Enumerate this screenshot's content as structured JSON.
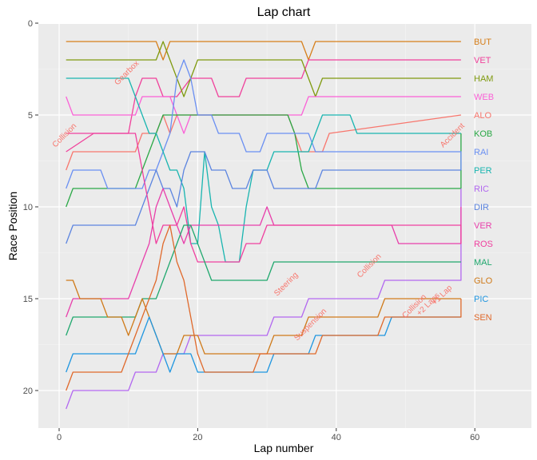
{
  "chart_data": {
    "type": "line",
    "title": "Lap chart",
    "xlabel": "Lap number",
    "ylabel": "Race Position",
    "xlim": [
      -3,
      68
    ],
    "ylim": [
      22,
      0
    ],
    "x_ticks": [
      0,
      20,
      40,
      60
    ],
    "y_ticks": [
      0,
      5,
      10,
      15,
      20
    ],
    "grid": true,
    "series": [
      {
        "name": "BUT",
        "color": "#d67f1b",
        "points": [
          [
            1,
            1
          ],
          [
            14,
            1
          ],
          [
            15,
            2
          ],
          [
            16,
            1
          ],
          [
            35,
            1
          ],
          [
            36,
            2
          ],
          [
            37,
            1
          ],
          [
            58,
            1
          ]
        ]
      },
      {
        "name": "VET",
        "color": "#f0419b",
        "points": [
          [
            1,
            7
          ],
          [
            5,
            6
          ],
          [
            10,
            6
          ],
          [
            11,
            4
          ],
          [
            12,
            3
          ],
          [
            14,
            3
          ],
          [
            15,
            4
          ],
          [
            17,
            4
          ],
          [
            19,
            3
          ],
          [
            22,
            3
          ],
          [
            23,
            4
          ],
          [
            26,
            4
          ],
          [
            27,
            3
          ],
          [
            35,
            3
          ],
          [
            36,
            2
          ],
          [
            58,
            2
          ]
        ]
      },
      {
        "name": "HAM",
        "color": "#7f9a0f",
        "points": [
          [
            1,
            2
          ],
          [
            14,
            2
          ],
          [
            15,
            1
          ],
          [
            16,
            2
          ],
          [
            17,
            3
          ],
          [
            18,
            4
          ],
          [
            19,
            3
          ],
          [
            20,
            2
          ],
          [
            35,
            2
          ],
          [
            36,
            3
          ],
          [
            37,
            4
          ],
          [
            38,
            3
          ],
          [
            58,
            3
          ]
        ]
      },
      {
        "name": "WEB",
        "color": "#fb61d7",
        "points": [
          [
            1,
            4
          ],
          [
            2,
            5
          ],
          [
            11,
            5
          ],
          [
            12,
            4
          ],
          [
            16,
            4
          ],
          [
            17,
            5
          ],
          [
            18,
            6
          ],
          [
            19,
            5
          ],
          [
            35,
            5
          ],
          [
            36,
            4
          ],
          [
            58,
            4
          ]
        ]
      },
      {
        "name": "ALO",
        "color": "#f8766d",
        "points": [
          [
            1,
            8
          ],
          [
            2,
            7
          ],
          [
            11,
            7
          ],
          [
            12,
            6
          ],
          [
            14,
            6
          ],
          [
            15,
            5
          ],
          [
            16,
            6
          ],
          [
            17,
            5
          ],
          [
            33,
            5
          ],
          [
            34,
            6
          ],
          [
            35,
            7
          ],
          [
            38,
            7
          ],
          [
            39,
            6
          ],
          [
            58,
            5
          ]
        ]
      },
      {
        "name": "KOB",
        "color": "#2aa846",
        "points": [
          [
            1,
            10
          ],
          [
            2,
            9
          ],
          [
            11,
            9
          ],
          [
            12,
            8
          ],
          [
            13,
            7
          ],
          [
            14,
            6
          ],
          [
            15,
            5
          ],
          [
            33,
            5
          ],
          [
            34,
            6
          ],
          [
            35,
            8
          ],
          [
            36,
            9
          ],
          [
            58,
            9
          ],
          [
            58,
            6
          ]
        ]
      },
      {
        "name": "RAI",
        "color": "#6a8ff2",
        "points": [
          [
            1,
            9
          ],
          [
            2,
            8
          ],
          [
            6,
            8
          ],
          [
            7,
            9
          ],
          [
            12,
            9
          ],
          [
            13,
            8
          ],
          [
            14,
            8
          ],
          [
            15,
            7
          ],
          [
            16,
            6
          ],
          [
            17,
            3
          ],
          [
            18,
            2
          ],
          [
            19,
            3
          ],
          [
            20,
            5
          ],
          [
            22,
            5
          ],
          [
            23,
            6
          ],
          [
            26,
            6
          ],
          [
            27,
            7
          ],
          [
            29,
            7
          ],
          [
            30,
            6
          ],
          [
            36,
            6
          ],
          [
            37,
            7
          ],
          [
            58,
            7
          ],
          [
            58,
            8
          ]
        ]
      },
      {
        "name": "PER",
        "color": "#19b5b0",
        "points": [
          [
            1,
            3
          ],
          [
            10,
            3
          ],
          [
            11,
            4
          ],
          [
            12,
            5
          ],
          [
            13,
            6
          ],
          [
            14,
            6
          ],
          [
            15,
            7
          ],
          [
            16,
            8
          ],
          [
            17,
            8
          ],
          [
            18,
            9
          ],
          [
            19,
            12
          ],
          [
            20,
            12
          ],
          [
            21,
            7
          ],
          [
            22,
            10
          ],
          [
            23,
            11
          ],
          [
            24,
            13
          ],
          [
            26,
            13
          ],
          [
            27,
            10
          ],
          [
            28,
            8
          ],
          [
            30,
            8
          ],
          [
            31,
            7
          ],
          [
            36,
            7
          ],
          [
            37,
            6
          ],
          [
            38,
            5
          ],
          [
            42,
            5
          ],
          [
            43,
            6
          ],
          [
            58,
            6
          ]
        ]
      },
      {
        "name": "RIC",
        "color": "#b267f0",
        "points": [
          [
            1,
            21
          ],
          [
            2,
            20
          ],
          [
            10,
            20
          ],
          [
            11,
            19
          ],
          [
            14,
            19
          ],
          [
            15,
            18
          ],
          [
            18,
            18
          ],
          [
            19,
            17
          ],
          [
            30,
            17
          ],
          [
            31,
            16
          ],
          [
            35,
            16
          ],
          [
            36,
            15
          ],
          [
            46,
            15
          ],
          [
            47,
            14
          ],
          [
            58,
            14
          ],
          [
            58,
            9
          ]
        ]
      },
      {
        "name": "DIR",
        "color": "#5c85e0",
        "points": [
          [
            1,
            12
          ],
          [
            2,
            11
          ],
          [
            11,
            11
          ],
          [
            12,
            10
          ],
          [
            13,
            9
          ],
          [
            14,
            8
          ],
          [
            15,
            9
          ],
          [
            16,
            9
          ],
          [
            17,
            10
          ],
          [
            18,
            8
          ],
          [
            19,
            7
          ],
          [
            21,
            7
          ],
          [
            22,
            8
          ],
          [
            24,
            8
          ],
          [
            25,
            9
          ],
          [
            27,
            9
          ],
          [
            28,
            8
          ],
          [
            30,
            8
          ],
          [
            31,
            9
          ],
          [
            37,
            9
          ],
          [
            38,
            8
          ],
          [
            58,
            8
          ]
        ]
      },
      {
        "name": "VER",
        "color": "#e83fab",
        "points": [
          [
            1,
            16
          ],
          [
            2,
            15
          ],
          [
            10,
            15
          ],
          [
            11,
            14
          ],
          [
            12,
            13
          ],
          [
            13,
            12
          ],
          [
            14,
            10
          ],
          [
            15,
            9
          ],
          [
            16,
            10
          ],
          [
            17,
            11
          ],
          [
            18,
            12
          ],
          [
            19,
            11
          ],
          [
            29,
            11
          ],
          [
            30,
            10
          ],
          [
            31,
            11
          ],
          [
            48,
            11
          ],
          [
            49,
            12
          ],
          [
            58,
            12
          ],
          [
            58,
            10
          ]
        ]
      },
      {
        "name": "ROS",
        "color": "#f0409f",
        "points": [
          [
            1,
            6
          ],
          [
            11,
            6
          ],
          [
            12,
            8
          ],
          [
            13,
            10
          ],
          [
            14,
            12
          ],
          [
            15,
            11
          ],
          [
            17,
            11
          ],
          [
            18,
            10
          ],
          [
            19,
            12
          ],
          [
            20,
            13
          ],
          [
            26,
            13
          ],
          [
            27,
            12
          ],
          [
            29,
            12
          ],
          [
            30,
            11
          ],
          [
            58,
            11
          ],
          [
            58,
            12
          ]
        ]
      },
      {
        "name": "MAL",
        "color": "#20a86e",
        "points": [
          [
            1,
            17
          ],
          [
            2,
            16
          ],
          [
            11,
            16
          ],
          [
            12,
            15
          ],
          [
            14,
            15
          ],
          [
            15,
            14
          ],
          [
            16,
            13
          ],
          [
            17,
            12
          ],
          [
            18,
            11
          ],
          [
            19,
            11
          ],
          [
            20,
            12
          ],
          [
            21,
            13
          ],
          [
            22,
            14
          ],
          [
            30,
            14
          ],
          [
            31,
            13
          ],
          [
            58,
            13
          ]
        ]
      },
      {
        "name": "GLO",
        "color": "#cf7a19",
        "points": [
          [
            1,
            14
          ],
          [
            2,
            14
          ],
          [
            3,
            15
          ],
          [
            6,
            15
          ],
          [
            7,
            16
          ],
          [
            9,
            16
          ],
          [
            10,
            17
          ],
          [
            11,
            16
          ],
          [
            12,
            15
          ],
          [
            13,
            16
          ],
          [
            14,
            17
          ],
          [
            15,
            18
          ],
          [
            17,
            18
          ],
          [
            18,
            17
          ],
          [
            20,
            17
          ],
          [
            21,
            18
          ],
          [
            30,
            18
          ],
          [
            31,
            17
          ],
          [
            35,
            17
          ],
          [
            36,
            16
          ],
          [
            46,
            16
          ],
          [
            47,
            15
          ],
          [
            58,
            15
          ]
        ]
      },
      {
        "name": "PIC",
        "color": "#1f96e0",
        "points": [
          [
            1,
            19
          ],
          [
            2,
            18
          ],
          [
            11,
            18
          ],
          [
            12,
            17
          ],
          [
            13,
            16
          ],
          [
            14,
            17
          ],
          [
            15,
            18
          ],
          [
            16,
            19
          ],
          [
            17,
            18
          ],
          [
            19,
            18
          ],
          [
            20,
            19
          ],
          [
            30,
            19
          ],
          [
            31,
            18
          ],
          [
            36,
            18
          ],
          [
            37,
            17
          ],
          [
            47,
            17
          ],
          [
            48,
            16
          ],
          [
            58,
            16
          ]
        ]
      },
      {
        "name": "SEN",
        "color": "#e0692b",
        "points": [
          [
            1,
            20
          ],
          [
            2,
            19
          ],
          [
            9,
            19
          ],
          [
            10,
            18
          ],
          [
            11,
            17
          ],
          [
            12,
            16
          ],
          [
            13,
            15
          ],
          [
            14,
            14
          ],
          [
            15,
            12
          ],
          [
            16,
            11
          ],
          [
            17,
            13
          ],
          [
            18,
            14
          ],
          [
            19,
            16
          ],
          [
            20,
            18
          ],
          [
            21,
            19
          ],
          [
            28,
            19
          ],
          [
            29,
            18
          ],
          [
            37,
            18
          ],
          [
            38,
            17
          ],
          [
            46,
            17
          ],
          [
            47,
            16
          ],
          [
            58,
            16
          ],
          [
            58,
            15
          ]
        ]
      }
    ],
    "annotations": [
      {
        "text": "Collision",
        "x": 1,
        "y": 6.2
      },
      {
        "text": "Gearbox",
        "x": 10,
        "y": 2.8
      },
      {
        "text": "Accident",
        "x": 57,
        "y": 6.2
      },
      {
        "text": "Steering",
        "x": 33,
        "y": 14.3
      },
      {
        "text": "Collision",
        "x": 45,
        "y": 13.3
      },
      {
        "text": "Suspension",
        "x": 36.5,
        "y": 16.5
      },
      {
        "text": "Collision",
        "x": 51.5,
        "y": 15.5
      },
      {
        "text": "+2 Laps",
        "x": 53.5,
        "y": 15.4
      },
      {
        "text": "+1 Lap",
        "x": 55.5,
        "y": 14.9
      }
    ]
  }
}
